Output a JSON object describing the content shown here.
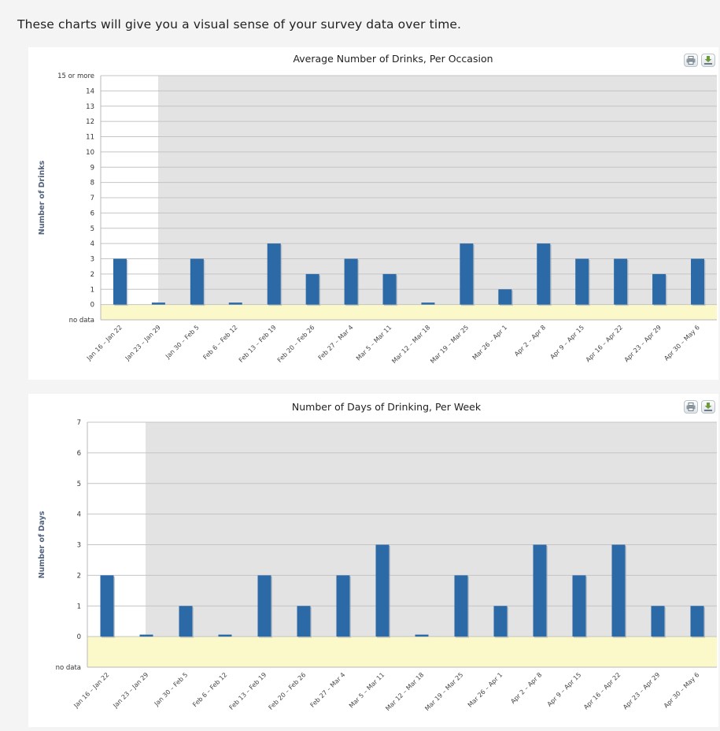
{
  "intro_text": "These charts will give you a visual sense of your survey data over time.",
  "colors": {
    "bar": "#2b69a7",
    "plot_bg": "#e3e3e3",
    "nodata_band": "#fbf8c9",
    "grid": "#c4c4c4",
    "ylabel": "#52647e"
  },
  "icons": {
    "print": "printer-icon",
    "export": "download-icon"
  },
  "chart_data": [
    {
      "type": "bar",
      "title": "Average Number of Drinks, Per Occasion",
      "ylabel": "Number of Drinks",
      "xlabel": "",
      "ylim": [
        -1,
        15
      ],
      "yticks": [
        "no data",
        "0",
        "1",
        "2",
        "3",
        "4",
        "5",
        "6",
        "7",
        "8",
        "9",
        "10",
        "11",
        "12",
        "13",
        "14",
        "15 or more"
      ],
      "categories": [
        "Jan 16 – Jan 22",
        "Jan 23 – Jan 29",
        "Jan 30 – Feb 5",
        "Feb 6 – Feb 12",
        "Feb 13 – Feb 19",
        "Feb 20 – Feb 26",
        "Feb 27 – Mar 4",
        "Mar 5 – Mar 11",
        "Mar 12 – Mar 18",
        "Mar 19 – Mar 25",
        "Mar 26 – Apr 1",
        "Apr 2 – Apr 8",
        "Apr 9 – Apr 15",
        "Apr 16 – Apr 22",
        "Apr 23 – Apr 29",
        "Apr 30 – May 6"
      ],
      "values": [
        3,
        0,
        3,
        0,
        4,
        2,
        3,
        2,
        0,
        4,
        1,
        4,
        3,
        3,
        2,
        3
      ],
      "grid": true,
      "legend": "none"
    },
    {
      "type": "bar",
      "title": "Number of Days of Drinking, Per Week",
      "ylabel": "Number of Days",
      "xlabel": "",
      "ylim": [
        -1,
        7
      ],
      "yticks": [
        "no data",
        "0",
        "1",
        "2",
        "3",
        "4",
        "5",
        "6",
        "7"
      ],
      "categories": [
        "Jan 16 – Jan 22",
        "Jan 23 – Jan 29",
        "Jan 30 – Feb 5",
        "Feb 6 – Feb 12",
        "Feb 13 – Feb 19",
        "Feb 20 – Feb 26",
        "Feb 27 – Mar 4",
        "Mar 5 – Mar 11",
        "Mar 12 – Mar 18",
        "Mar 19 – Mar 25",
        "Mar 26 – Apr 1",
        "Apr 2 – Apr 8",
        "Apr 9 – Apr 15",
        "Apr 16 – Apr 22",
        "Apr 23 – Apr 29",
        "Apr 30 – May 6"
      ],
      "values": [
        2,
        0,
        1,
        0,
        2,
        1,
        2,
        3,
        0,
        2,
        1,
        3,
        2,
        3,
        1,
        1
      ],
      "grid": true,
      "legend": "none"
    }
  ]
}
